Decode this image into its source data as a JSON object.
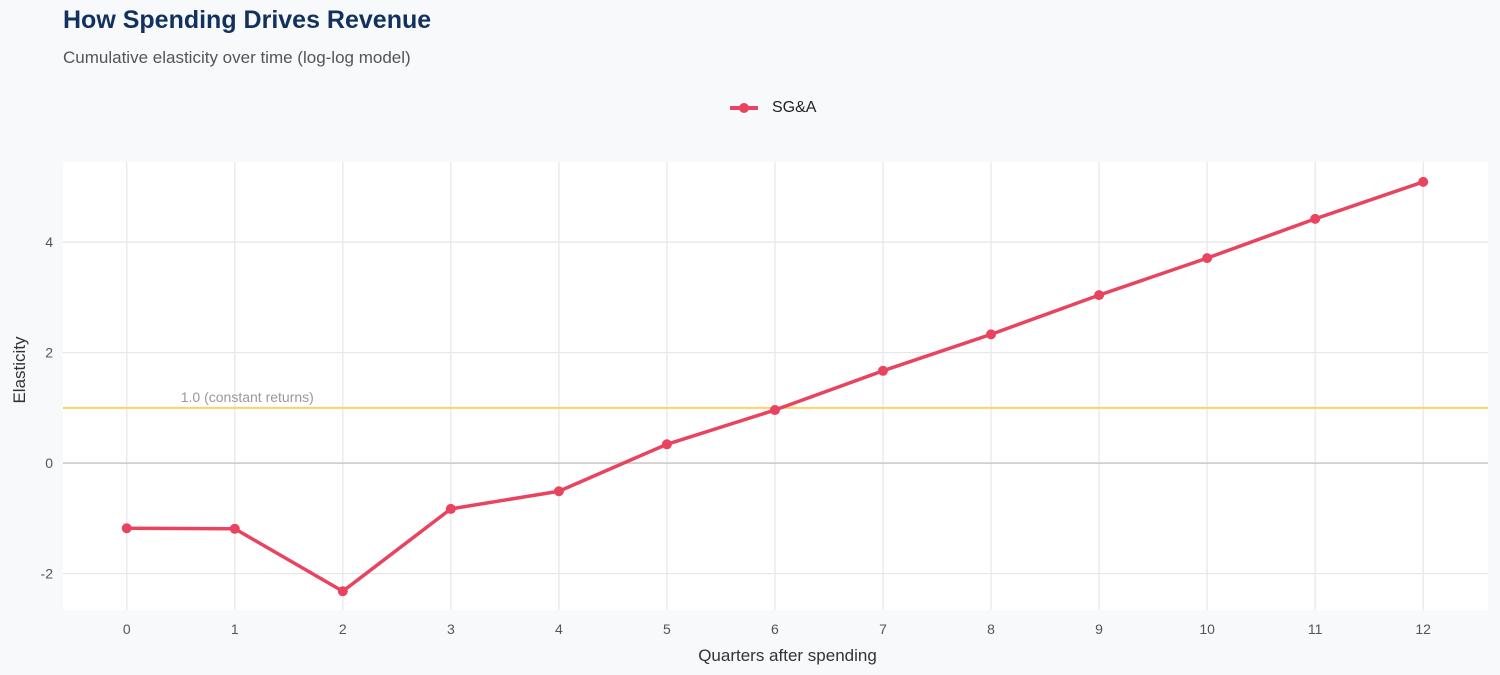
{
  "chart_data": {
    "type": "line",
    "title": "How Spending Drives Revenue",
    "subtitle": "Cumulative elasticity over time (log-log model)",
    "xlabel": "Quarters after spending",
    "ylabel": "Elasticity",
    "x": [
      0,
      1,
      2,
      3,
      4,
      5,
      6,
      7,
      8,
      9,
      10,
      11,
      12
    ],
    "series": [
      {
        "name": "SG&A",
        "color": "#e8445f",
        "values": [
          -1.18,
          -1.19,
          -2.32,
          -0.83,
          -0.51,
          0.34,
          0.96,
          1.67,
          2.33,
          3.04,
          3.71,
          4.42,
          5.09
        ]
      }
    ],
    "xticks": [
      0,
      1,
      2,
      3,
      4,
      5,
      6,
      7,
      8,
      9,
      10,
      11,
      12
    ],
    "yticks": [
      -2,
      0,
      2,
      4
    ],
    "xlim": [
      -0.59,
      12.6
    ],
    "ylim": [
      -2.66,
      5.45
    ],
    "reference_line": {
      "y": 1.0,
      "label": "1.0 (constant returns)",
      "color": "#ffd166"
    },
    "zero_line_color": "#cccccc",
    "grid": true,
    "legend_position": "top"
  }
}
